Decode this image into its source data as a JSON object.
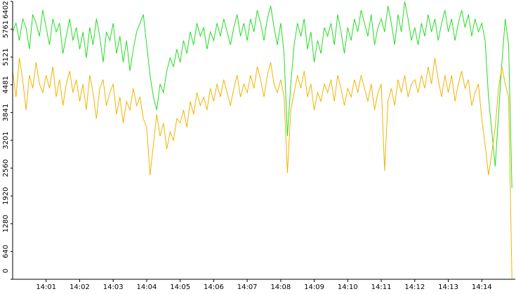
{
  "chart_data": {
    "type": "line",
    "x": [
      0,
      0.1,
      0.2,
      0.3,
      0.4,
      0.5,
      0.6,
      0.7,
      0.8,
      0.9,
      1,
      1.1,
      1.2,
      1.3,
      1.4,
      1.5,
      1.6,
      1.7,
      1.8,
      1.9,
      2,
      2.1,
      2.2,
      2.3,
      2.4,
      2.5,
      2.6,
      2.7,
      2.8,
      2.9,
      3,
      3.1,
      3.2,
      3.3,
      3.4,
      3.5,
      3.6,
      3.7,
      3.8,
      3.9,
      4,
      4.1,
      4.2,
      4.3,
      4.4,
      4.5,
      4.6,
      4.7,
      4.8,
      4.9,
      5,
      5.1,
      5.2,
      5.3,
      5.4,
      5.5,
      5.6,
      5.7,
      5.8,
      5.9,
      6,
      6.1,
      6.2,
      6.3,
      6.4,
      6.5,
      6.6,
      6.7,
      6.8,
      6.9,
      7,
      7.1,
      7.2,
      7.3,
      7.4,
      7.5,
      7.6,
      7.7,
      7.8,
      7.9,
      8,
      8.1,
      8.2,
      8.3,
      8.4,
      8.5,
      8.6,
      8.7,
      8.8,
      8.9,
      9,
      9.1,
      9.2,
      9.3,
      9.4,
      9.5,
      9.6,
      9.7,
      9.8,
      9.9,
      10,
      10.1,
      10.2,
      10.3,
      10.4,
      10.5,
      10.6,
      10.7,
      10.8,
      10.9,
      11,
      11.1,
      11.2,
      11.3,
      11.4,
      11.5,
      11.6,
      11.7,
      11.8,
      11.9,
      12,
      12.1,
      12.2,
      12.3,
      12.4,
      12.5,
      12.6,
      12.7,
      12.8,
      12.9,
      13,
      13.1,
      13.2,
      13.3,
      13.4,
      13.5,
      13.6,
      13.7,
      13.8,
      13.9,
      14,
      14.1,
      14.2,
      14.3,
      14.4,
      14.5,
      14.6,
      14.7,
      14.8,
      14.9
    ],
    "series": [
      {
        "color": "#22dd22",
        "values": [
          5700,
          5900,
          5500,
          6000,
          5800,
          5300,
          6100,
          5900,
          5600,
          6200,
          5800,
          5400,
          6000,
          5700,
          5900,
          5200,
          5600,
          6000,
          5500,
          5800,
          5300,
          5700,
          5100,
          5800,
          5400,
          6000,
          5600,
          5000,
          5700,
          5500,
          5900,
          5200,
          5600,
          5000,
          5500,
          4800,
          5300,
          5700,
          5900,
          6100,
          5400,
          4700,
          4200,
          3900,
          4500,
          4300,
          4800,
          5100,
          4900,
          5300,
          5000,
          5500,
          5200,
          5700,
          5400,
          5900,
          5600,
          5800,
          5300,
          5700,
          5500,
          5900,
          5600,
          6000,
          5700,
          5400,
          5800,
          6100,
          5600,
          5900,
          5500,
          6000,
          5700,
          6200,
          5900,
          5500,
          6000,
          6300,
          5800,
          5400,
          5900,
          5200,
          3300,
          4500,
          5400,
          5900,
          5600,
          6000,
          5300,
          5700,
          5000,
          5500,
          5200,
          5800,
          5600,
          5900,
          5400,
          6100,
          5700,
          5200,
          5800,
          5500,
          6000,
          5700,
          6200,
          5900,
          5600,
          6100,
          5400,
          5800,
          6000,
          5700,
          6300,
          5900,
          5400,
          6100,
          5700,
          6400,
          6000,
          5500,
          5800,
          5400,
          5900,
          5600,
          6100,
          5700,
          6000,
          5500,
          5900,
          6200,
          5700,
          6000,
          5500,
          5900,
          6200,
          5800,
          6100,
          5600,
          6000,
          5700,
          5900,
          5500,
          4200,
          3400,
          2600,
          3800,
          5000,
          6000,
          5400,
          2100
        ]
      },
      {
        "color": "#f0b400",
        "values": [
          4800,
          4200,
          5100,
          4600,
          3900,
          4700,
          4400,
          5000,
          4500,
          4300,
          4700,
          4400,
          4900,
          4200,
          4600,
          4000,
          4500,
          4800,
          4300,
          4600,
          4100,
          4500,
          3900,
          4700,
          4300,
          3700,
          4400,
          4600,
          4000,
          4300,
          4500,
          3800,
          4200,
          3600,
          4100,
          3900,
          4400,
          4000,
          4200,
          3700,
          3500,
          2400,
          3100,
          3800,
          3300,
          3600,
          3000,
          3400,
          3200,
          3700,
          3600,
          3900,
          3500,
          4100,
          3800,
          4300,
          4000,
          4200,
          3900,
          4400,
          4100,
          4500,
          4200,
          4600,
          4300,
          4000,
          4400,
          4700,
          4200,
          4500,
          4300,
          4700,
          4400,
          4900,
          4600,
          4200,
          4700,
          5000,
          4500,
          4300,
          4600,
          4200,
          2450,
          3900,
          4300,
          4700,
          4400,
          4800,
          4200,
          4500,
          3900,
          4300,
          4100,
          4500,
          4300,
          4600,
          4100,
          4700,
          4400,
          4000,
          4400,
          4200,
          4600,
          4300,
          4700,
          4400,
          4100,
          4500,
          3900,
          4300,
          4500,
          2500,
          4100,
          4400,
          4000,
          4600,
          4300,
          4700,
          4200,
          4500,
          4600,
          4300,
          4700,
          4400,
          4900,
          4500,
          5100,
          4600,
          4200,
          4700,
          4300,
          4700,
          4100,
          4500,
          4800,
          4400,
          4600,
          4000,
          4300,
          4500,
          3700,
          3100,
          2400,
          2900,
          3500,
          4400,
          4900,
          4500,
          4200,
          0
        ]
      }
    ],
    "xlim": [
      0,
      15
    ],
    "xticks": [
      {
        "value": 1,
        "label": "14:01"
      },
      {
        "value": 2,
        "label": "14:02"
      },
      {
        "value": 3,
        "label": "14:03"
      },
      {
        "value": 4,
        "label": "14:04"
      },
      {
        "value": 5,
        "label": "14:05"
      },
      {
        "value": 6,
        "label": "14:06"
      },
      {
        "value": 7,
        "label": "14:07"
      },
      {
        "value": 8,
        "label": "14:08"
      },
      {
        "value": 9,
        "label": "14:09"
      },
      {
        "value": 10,
        "label": "14:10"
      },
      {
        "value": 11,
        "label": "14:11"
      },
      {
        "value": 12,
        "label": "14:12"
      },
      {
        "value": 13,
        "label": "14:13"
      },
      {
        "value": 14,
        "label": "14:14"
      }
    ],
    "ylim": [
      0,
      6402
    ],
    "yticks": [
      0,
      640,
      1280,
      1920,
      2560,
      3201,
      3841,
      4481,
      5121,
      5761,
      6402
    ]
  }
}
